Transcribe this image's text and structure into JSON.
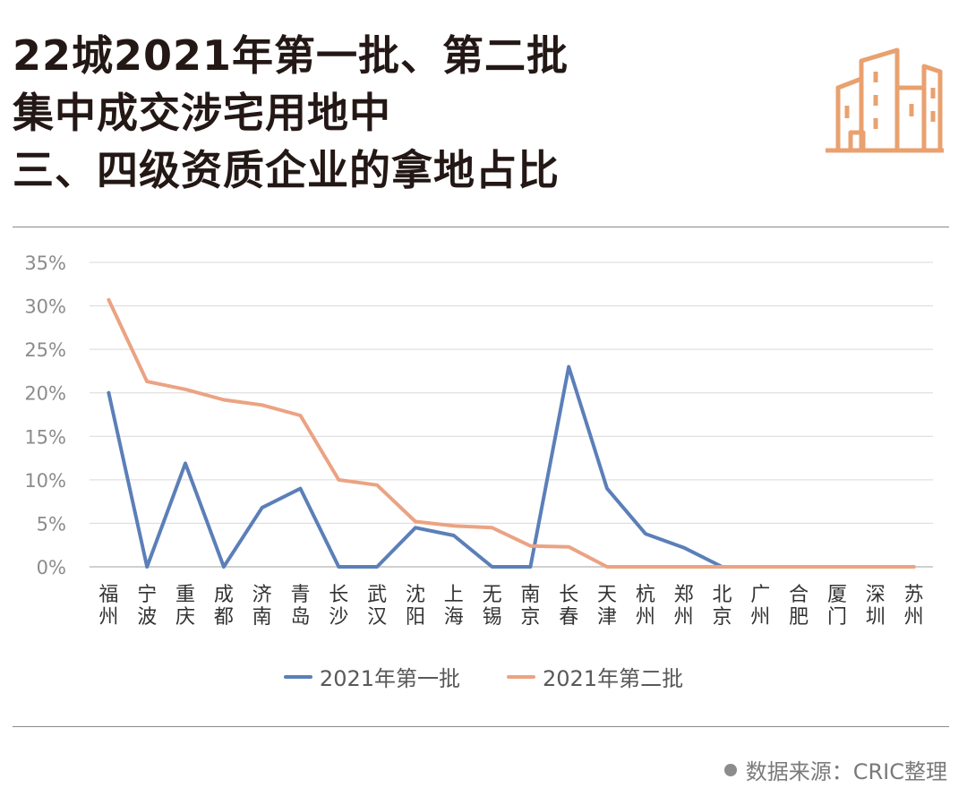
{
  "title_lines": [
    "22城2021年第一批、第二批",
    "集中成交涉宅用地中",
    "三、四级资质企业的拿地占比"
  ],
  "source": "数据来源：CRIC整理",
  "colors": {
    "batch1": "#5B7FB8",
    "batch2": "#EBA383",
    "grid": "#d9d9d9",
    "logo": "#E8A16F",
    "axis_text": "#595959"
  },
  "chart_data": {
    "type": "line",
    "title": "",
    "xlabel": "",
    "ylabel": "",
    "ylim": [
      0,
      35
    ],
    "yticks": [
      "0%",
      "5%",
      "10%",
      "15%",
      "20%",
      "25%",
      "30%",
      "35%"
    ],
    "grid": true,
    "legend_position": "bottom",
    "categories": [
      "福州",
      "宁波",
      "重庆",
      "成都",
      "济南",
      "青岛",
      "长沙",
      "武汉",
      "沈阳",
      "上海",
      "无锡",
      "南京",
      "长春",
      "天津",
      "杭州",
      "郑州",
      "北京",
      "广州",
      "合肥",
      "厦门",
      "深圳",
      "苏州"
    ],
    "series": [
      {
        "name": "2021年第一批",
        "color": "#5B7FB8",
        "values": [
          20.0,
          0,
          11.9,
          0,
          6.8,
          9.0,
          0,
          0,
          4.5,
          3.6,
          0,
          0,
          23.0,
          9.0,
          3.8,
          2.2,
          0,
          0,
          0,
          0,
          0,
          0
        ]
      },
      {
        "name": "2021年第二批",
        "color": "#EBA383",
        "values": [
          30.7,
          21.3,
          20.4,
          19.2,
          18.6,
          17.4,
          10.0,
          9.4,
          5.2,
          4.7,
          4.5,
          2.4,
          2.3,
          0,
          0,
          0,
          0,
          0,
          0,
          0,
          0,
          0
        ]
      }
    ]
  }
}
